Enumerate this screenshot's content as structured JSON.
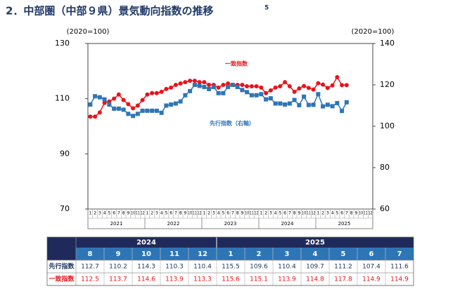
{
  "chart_data": {
    "type": "line",
    "title": "2．中部圏（中部９県）景気動向指数の推移",
    "title_footnote": "5",
    "y_label": "(2020=100)",
    "y2_label": "(2020=100)",
    "categories": [
      "1",
      "2",
      "3",
      "4",
      "5",
      "6",
      "7",
      "8",
      "9",
      "10",
      "11",
      "12",
      "1",
      "2",
      "3",
      "4",
      "5",
      "6",
      "7",
      "8",
      "9",
      "10",
      "11",
      "12",
      "1",
      "2",
      "3",
      "4",
      "5",
      "6",
      "7",
      "8",
      "9",
      "10",
      "11",
      "12",
      "1",
      "2",
      "3",
      "4",
      "5",
      "6",
      "7",
      "8",
      "9",
      "10",
      "11",
      "12",
      "1",
      "2",
      "3",
      "4",
      "5",
      "6",
      "7",
      "8",
      "9",
      "10",
      "11",
      "12"
    ],
    "x_groups": [
      "2021",
      "2022",
      "2023",
      "2024",
      "2025"
    ],
    "ylim": [
      70,
      130
    ],
    "yticks": [
      70,
      90,
      110,
      130
    ],
    "y2lim": [
      60,
      140
    ],
    "y2ticks": [
      60,
      80,
      100,
      120,
      140
    ],
    "grid": false,
    "series": [
      {
        "name": "一致指数",
        "color": "#e8141b",
        "marker": "circle",
        "values": [
          103.5,
          103.5,
          105,
          108.5,
          109,
          110,
          111.5,
          109.5,
          108,
          106.5,
          107.5,
          109.5,
          111.5,
          112,
          112,
          112.5,
          113.5,
          114,
          115,
          115.5,
          116,
          116.5,
          116.5,
          116,
          116,
          115,
          115,
          114,
          115,
          115.5,
          115,
          115,
          115,
          114.5,
          114.5,
          114.5,
          114,
          112,
          113,
          114,
          114.5,
          116,
          114.5,
          112.5,
          113.7,
          114.6,
          113.9,
          113.3,
          115.6,
          115.1,
          113.9,
          114.8,
          117.8,
          114.9,
          114.9,
          null,
          null,
          null,
          null,
          null
        ]
      },
      {
        "name": "先行指数（右軸）",
        "color": "#2e75b6",
        "marker": "square",
        "axis": "y2",
        "values": [
          110.5,
          114.5,
          114,
          113,
          110.5,
          108.5,
          108.5,
          108,
          106,
          105,
          106,
          107.5,
          107.5,
          107.5,
          107.5,
          106.5,
          110,
          110.5,
          111,
          112,
          115,
          117,
          120,
          119.5,
          119,
          118,
          119,
          116,
          116,
          119,
          120,
          119,
          117.5,
          116.5,
          115,
          115,
          115.5,
          113,
          113.5,
          111,
          111,
          110.5,
          111,
          112.7,
          110.2,
          114.3,
          110.3,
          110.4,
          115.5,
          109.6,
          110.4,
          109.7,
          111.2,
          107.4,
          111.6,
          null,
          null,
          null,
          null,
          null
        ]
      }
    ]
  },
  "table": {
    "row_labels": [
      "先行指数",
      "一致指数"
    ]
  }
}
